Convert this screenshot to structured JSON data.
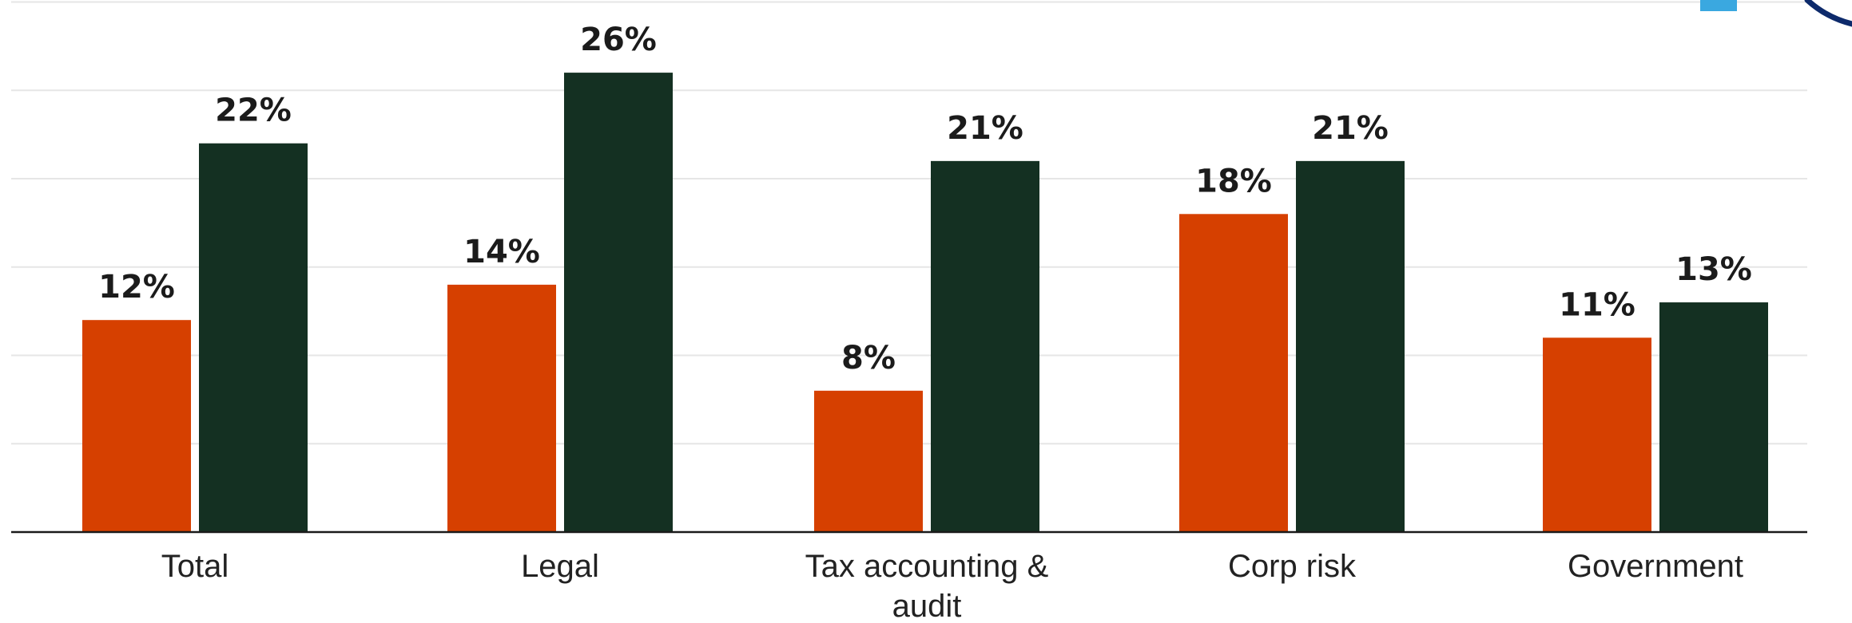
{
  "chart_data": {
    "type": "bar",
    "categories": [
      "Total",
      "Legal",
      "Tax accounting &\naudit",
      "Corp risk",
      "Government"
    ],
    "series": [
      {
        "values": [
          12,
          14,
          8,
          18,
          11
        ],
        "labels": [
          "12%",
          "14%",
          "8%",
          "18%",
          "11%"
        ],
        "color": "#d64000"
      },
      {
        "values": [
          22,
          26,
          21,
          21,
          13
        ],
        "labels": [
          "22%",
          "26%",
          "21%",
          "21%",
          "13%"
        ],
        "color": "#143022"
      }
    ],
    "ylim": [
      0,
      30
    ],
    "grid": true,
    "xlabel": "",
    "ylabel": ""
  },
  "decorations": {
    "corner_square_color": "#3aa8e0",
    "corner_arc_color": "#0d2a6b"
  }
}
